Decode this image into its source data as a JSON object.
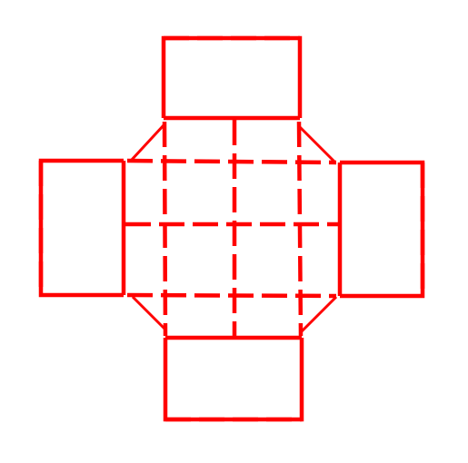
{
  "diagram": {
    "stroke_color": "#ff0000",
    "background_color": "#ffffff"
  }
}
